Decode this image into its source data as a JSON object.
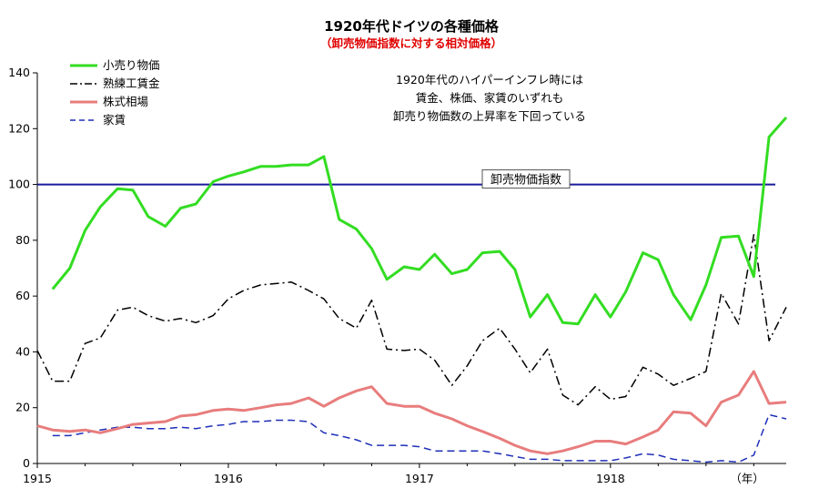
{
  "chart_data": {
    "type": "line",
    "title": "1920年代ドイツの各種価格",
    "subtitle": "（卸売物価指数に対する相対価格）",
    "ylim": [
      0,
      140
    ],
    "yticks": [
      0,
      20,
      40,
      60,
      80,
      100,
      120,
      140
    ],
    "xlim": [
      1915.0,
      1918.92
    ],
    "xticks": [
      {
        "value": 1915,
        "label": "1915"
      },
      {
        "value": 1916,
        "label": "1916"
      },
      {
        "value": 1917,
        "label": "1917"
      },
      {
        "value": 1918,
        "label": "1918"
      }
    ],
    "xunit": "（年）",
    "reference_line": {
      "value": 100,
      "label": "卸売物価指数",
      "color": "#1a1a9c"
    },
    "annotation": [
      "1920年代のハイパーインフレ時には",
      "賃金、株価、家賃のいずれも",
      "卸売り物価数の上昇率を下回っている"
    ],
    "series": [
      {
        "name": "小売り物価",
        "color": "#33dd22",
        "style": "solid",
        "x": [
          1915.08,
          1915.17,
          1915.25,
          1915.33,
          1915.42,
          1915.5,
          1915.58,
          1915.67,
          1915.75,
          1915.83,
          1915.92,
          1916.0,
          1916.08,
          1916.17,
          1916.25,
          1916.33,
          1916.42,
          1916.5,
          1916.58,
          1916.67,
          1916.75,
          1916.83,
          1916.92,
          1917.0,
          1917.08,
          1917.17,
          1917.25,
          1917.33,
          1917.42,
          1917.5,
          1917.58,
          1917.67,
          1917.75,
          1917.83,
          1917.92,
          1918.0,
          1918.08,
          1918.17,
          1918.25,
          1918.33,
          1918.42,
          1918.5,
          1918.58,
          1918.67,
          1918.75,
          1918.83,
          1918.92
        ],
        "values": [
          62.5,
          70,
          83.5,
          92,
          98.5,
          98,
          88.5,
          85,
          91.5,
          93,
          101,
          103,
          104.5,
          106.5,
          106.5,
          107,
          107,
          110,
          87.5,
          84,
          77,
          66,
          70.5,
          69.5,
          75,
          68,
          69.5,
          75.5,
          76,
          69.5,
          52.5,
          60.5,
          50.5,
          50,
          60.5,
          52.5,
          61.5,
          75.5,
          73,
          60.5,
          51.5,
          64,
          81,
          81.5,
          67,
          117,
          124
        ]
      },
      {
        "name": "熟練工賃金",
        "color": "#000000",
        "style": "dashdot",
        "x": [
          1915.0,
          1915.08,
          1915.17,
          1915.25,
          1915.33,
          1915.42,
          1915.5,
          1915.58,
          1915.67,
          1915.75,
          1915.83,
          1915.92,
          1916.0,
          1916.08,
          1916.17,
          1916.25,
          1916.33,
          1916.42,
          1916.5,
          1916.58,
          1916.67,
          1916.75,
          1916.83,
          1916.92,
          1917.0,
          1917.08,
          1917.17,
          1917.25,
          1917.33,
          1917.42,
          1917.5,
          1917.58,
          1917.67,
          1917.75,
          1917.83,
          1917.92,
          1918.0,
          1918.08,
          1918.17,
          1918.25,
          1918.33,
          1918.42,
          1918.5,
          1918.58,
          1918.67,
          1918.75,
          1918.83,
          1918.92
        ],
        "values": [
          40.5,
          29.5,
          29.5,
          43,
          45,
          55,
          56,
          53,
          51,
          52,
          50.5,
          53,
          59,
          62,
          64,
          64.5,
          65,
          62,
          59,
          52,
          48.5,
          58.5,
          41,
          40.5,
          41,
          37,
          28,
          35,
          44,
          48.5,
          41,
          32.5,
          41,
          24.5,
          21,
          27.5,
          23,
          24,
          34.5,
          32,
          28,
          30.5,
          33,
          61,
          50,
          82,
          44,
          56
        ]
      },
      {
        "name": "株式相場",
        "color": "#e87d7d",
        "style": "solid",
        "x": [
          1915.0,
          1915.08,
          1915.17,
          1915.25,
          1915.33,
          1915.42,
          1915.5,
          1915.58,
          1915.67,
          1915.75,
          1915.83,
          1915.92,
          1916.0,
          1916.08,
          1916.17,
          1916.25,
          1916.33,
          1916.42,
          1916.5,
          1916.58,
          1916.67,
          1916.75,
          1916.83,
          1916.92,
          1917.0,
          1917.08,
          1917.17,
          1917.25,
          1917.33,
          1917.42,
          1917.5,
          1917.58,
          1917.67,
          1917.75,
          1917.83,
          1917.92,
          1918.0,
          1918.08,
          1918.17,
          1918.25,
          1918.33,
          1918.42,
          1918.5,
          1918.58,
          1918.67,
          1918.75,
          1918.83,
          1918.92
        ],
        "values": [
          13.5,
          12,
          11.5,
          12,
          11,
          12.5,
          14,
          14.5,
          15,
          17,
          17.5,
          19,
          19.5,
          19,
          20,
          21,
          21.5,
          23.5,
          20.5,
          23.5,
          26,
          27.5,
          21.5,
          20.5,
          20.5,
          18,
          16,
          13.5,
          11.5,
          9,
          6.5,
          4.5,
          3.5,
          4.5,
          6,
          8,
          8,
          7,
          9.5,
          12,
          18.5,
          18,
          13.5,
          22,
          24.5,
          33,
          21.5,
          22
        ]
      },
      {
        "name": "家賃",
        "color": "#1f2fb8",
        "style": "dashed",
        "x": [
          1915.08,
          1915.17,
          1915.25,
          1915.33,
          1915.42,
          1915.5,
          1915.58,
          1915.67,
          1915.75,
          1915.83,
          1915.92,
          1916.0,
          1916.08,
          1916.17,
          1916.25,
          1916.33,
          1916.42,
          1916.5,
          1916.58,
          1916.67,
          1916.75,
          1916.83,
          1916.92,
          1917.0,
          1917.08,
          1917.17,
          1917.25,
          1917.33,
          1917.42,
          1917.5,
          1917.58,
          1917.67,
          1917.75,
          1917.83,
          1917.92,
          1918.0,
          1918.08,
          1918.17,
          1918.25,
          1918.33,
          1918.42,
          1918.5,
          1918.58,
          1918.67,
          1918.75,
          1918.83,
          1918.92
        ],
        "values": [
          10,
          10,
          11,
          12,
          13,
          13,
          12.5,
          12.5,
          13,
          12.5,
          13.5,
          14,
          15,
          15,
          15.5,
          15.5,
          15,
          11,
          10,
          8.5,
          6.5,
          6.5,
          6.5,
          6,
          4.5,
          4.5,
          4.5,
          4.5,
          3.5,
          2.5,
          1.5,
          1.5,
          1,
          1,
          1,
          1,
          2,
          3.5,
          3,
          1.5,
          1,
          0.5,
          1,
          0.5,
          3,
          17.5,
          16
        ]
      }
    ]
  }
}
